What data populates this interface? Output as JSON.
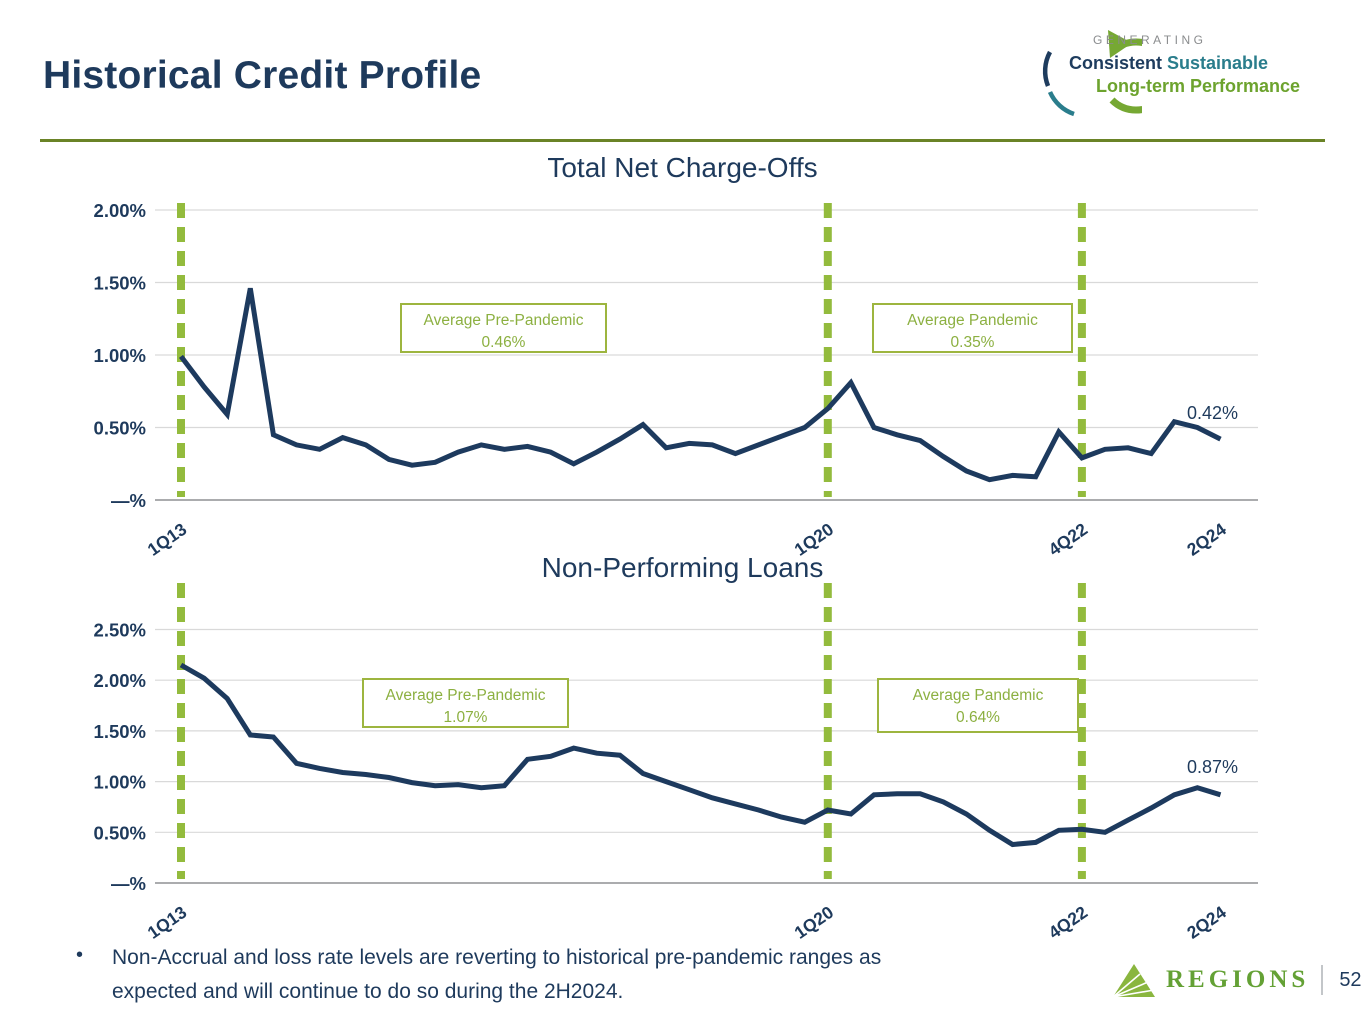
{
  "slide": {
    "title": "Historical Credit Profile",
    "page_number": "52"
  },
  "brand": {
    "tagline_word1": "GENERATING",
    "tagline_consistent": "Consistent",
    "tagline_sustainable": "Sustainable",
    "tagline_line3": "Long-term Performance",
    "company_name": "Regions"
  },
  "footer": {
    "bullet_glyph": "•",
    "bullet_lines": [
      "Non-Accrual and loss rate levels are reverting to historical pre-pandemic ranges as",
      "expected and will continue to do so during the 2H2024."
    ]
  },
  "colors": {
    "navy": "#1e3a5c",
    "line_navy": "#1d3a5e",
    "accent_green": "#93bb3d",
    "annotation_green": "#8cb041",
    "annotation_border": "#9db53f",
    "olive_rule": "#6a8326",
    "teal": "#2a7d8c",
    "logo_green": "#76a833",
    "regions_green": "#8ab63f",
    "gridline_gray": "#d9d9d9",
    "axis_gray": "#9fa1a3"
  },
  "chart_data": [
    {
      "type": "line",
      "title": "Total Net Charge-Offs",
      "ylabel": "",
      "xlabel": "",
      "grid": true,
      "ylim": [
        0,
        2.0
      ],
      "line_color": "#1d3a5e",
      "categories": [
        "1Q13",
        "2Q13",
        "3Q13",
        "4Q13",
        "1Q14",
        "2Q14",
        "3Q14",
        "4Q14",
        "1Q15",
        "2Q15",
        "3Q15",
        "4Q15",
        "1Q16",
        "2Q16",
        "3Q16",
        "4Q16",
        "1Q17",
        "2Q17",
        "3Q17",
        "4Q17",
        "1Q18",
        "2Q18",
        "3Q18",
        "4Q18",
        "1Q19",
        "2Q19",
        "3Q19",
        "4Q19",
        "1Q20",
        "2Q20",
        "3Q20",
        "4Q20",
        "1Q21",
        "2Q21",
        "3Q21",
        "4Q21",
        "1Q22",
        "2Q22",
        "3Q22",
        "4Q22",
        "1Q23",
        "2Q23",
        "3Q23",
        "4Q23",
        "1Q24",
        "2Q24"
      ],
      "values": [
        0.99,
        0.78,
        0.59,
        1.46,
        0.45,
        0.38,
        0.35,
        0.43,
        0.38,
        0.28,
        0.24,
        0.26,
        0.33,
        0.38,
        0.35,
        0.37,
        0.33,
        0.25,
        0.33,
        0.42,
        0.52,
        0.36,
        0.39,
        0.38,
        0.32,
        0.38,
        0.44,
        0.5,
        0.63,
        0.81,
        0.5,
        0.45,
        0.41,
        0.3,
        0.2,
        0.14,
        0.17,
        0.16,
        0.47,
        0.29,
        0.35,
        0.36,
        0.32,
        0.54,
        0.5,
        0.42
      ],
      "y_ticks": [
        {
          "label": "2.00%",
          "value": 2.0
        },
        {
          "label": "1.50%",
          "value": 1.5
        },
        {
          "label": "1.00%",
          "value": 1.0
        },
        {
          "label": "0.50%",
          "value": 0.5
        },
        {
          "label": "—%",
          "value": 0
        }
      ],
      "x_ticks": [
        {
          "label": "1Q13",
          "index": 0
        },
        {
          "label": "1Q20",
          "index": 28
        },
        {
          "label": "4Q22",
          "index": 39
        },
        {
          "label": "2Q24",
          "index": 45
        }
      ],
      "vline_indices": [
        0,
        28,
        39
      ],
      "annotations": [
        {
          "line1": "Average Pre-Pandemic",
          "line2": "0.46%"
        },
        {
          "line1": "Average Pandemic",
          "line2": "0.35%"
        }
      ],
      "end_label": "0.42%"
    },
    {
      "type": "line",
      "title": "Non-Performing Loans",
      "ylabel": "",
      "xlabel": "",
      "grid": true,
      "ylim": [
        0,
        2.5
      ],
      "line_color": "#1d3a5e",
      "categories": [
        "1Q13",
        "2Q13",
        "3Q13",
        "4Q13",
        "1Q14",
        "2Q14",
        "3Q14",
        "4Q14",
        "1Q15",
        "2Q15",
        "3Q15",
        "4Q15",
        "1Q16",
        "2Q16",
        "3Q16",
        "4Q16",
        "1Q17",
        "2Q17",
        "3Q17",
        "4Q17",
        "1Q18",
        "2Q18",
        "3Q18",
        "4Q18",
        "1Q19",
        "2Q19",
        "3Q19",
        "4Q19",
        "1Q20",
        "2Q20",
        "3Q20",
        "4Q20",
        "1Q21",
        "2Q21",
        "3Q21",
        "4Q21",
        "1Q22",
        "2Q22",
        "3Q22",
        "4Q22",
        "1Q23",
        "2Q23",
        "3Q23",
        "4Q23",
        "1Q24",
        "2Q24"
      ],
      "values": [
        2.15,
        2.02,
        1.82,
        1.46,
        1.44,
        1.18,
        1.13,
        1.09,
        1.07,
        1.04,
        0.99,
        0.96,
        0.97,
        0.94,
        0.96,
        1.22,
        1.25,
        1.33,
        1.28,
        1.26,
        1.08,
        1.0,
        0.92,
        0.84,
        0.78,
        0.72,
        0.65,
        0.6,
        0.72,
        0.68,
        0.87,
        0.88,
        0.88,
        0.8,
        0.68,
        0.52,
        0.38,
        0.4,
        0.52,
        0.53,
        0.5,
        0.62,
        0.74,
        0.87,
        0.94,
        0.87
      ],
      "y_ticks": [
        {
          "label": "2.50%",
          "value": 2.5
        },
        {
          "label": "2.00%",
          "value": 2.0
        },
        {
          "label": "1.50%",
          "value": 1.5
        },
        {
          "label": "1.00%",
          "value": 1.0
        },
        {
          "label": "0.50%",
          "value": 0.5
        },
        {
          "label": "—%",
          "value": 0
        }
      ],
      "x_ticks": [
        {
          "label": "1Q13",
          "index": 0
        },
        {
          "label": "1Q20",
          "index": 28
        },
        {
          "label": "4Q22",
          "index": 39
        },
        {
          "label": "2Q24",
          "index": 45
        }
      ],
      "vline_indices": [
        0,
        28,
        39
      ],
      "annotations": [
        {
          "line1": "Average Pre-Pandemic",
          "line2": "1.07%"
        },
        {
          "line1": "Average Pandemic",
          "line2": "0.64%"
        }
      ],
      "end_label": "0.87%"
    }
  ]
}
